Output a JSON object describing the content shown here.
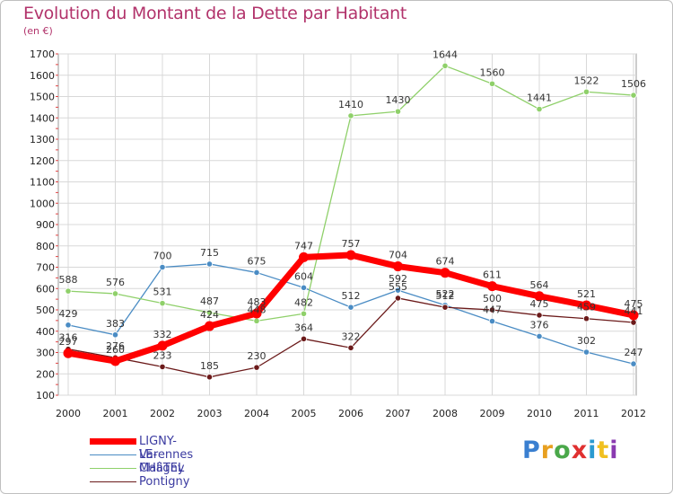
{
  "title": "Evolution du Montant de la Dette par Habitant",
  "subtitle": "(en €)",
  "logo": "Proxiti",
  "chart_data": {
    "type": "line",
    "x": [
      "2000",
      "2001",
      "2002",
      "2003",
      "2004",
      "2005",
      "2006",
      "2007",
      "2008",
      "2009",
      "2010",
      "2011",
      "2012"
    ],
    "ylim": [
      100,
      1700
    ],
    "yticks": [
      100,
      200,
      300,
      400,
      500,
      600,
      700,
      800,
      900,
      1000,
      1100,
      1200,
      1300,
      1400,
      1500,
      1600,
      1700
    ],
    "grid": true,
    "legend_position": "bottom-left",
    "series": [
      {
        "name": "Varennes",
        "color": "#4a8cc4",
        "width": 1.3,
        "values": [
          429,
          383,
          700,
          715,
          675,
          604,
          512,
          592,
          522,
          447,
          376,
          302,
          247
        ]
      },
      {
        "name": "Maligny",
        "color": "#8fd06a",
        "width": 1.3,
        "values": [
          588,
          576,
          531,
          487,
          448,
          482,
          1410,
          1430,
          1644,
          1560,
          1441,
          1522,
          1506
        ]
      },
      {
        "name": "Pontigny",
        "color": "#6b1a1a",
        "width": 1.3,
        "values": [
          316,
          276,
          233,
          185,
          230,
          364,
          322,
          555,
          512,
          500,
          475,
          459,
          441
        ]
      },
      {
        "name": "LIGNY-LE-CHâTEL",
        "color": "#ff0000",
        "width": 7,
        "values": [
          297,
          260,
          332,
          424,
          483,
          747,
          757,
          704,
          674,
          611,
          564,
          521,
          475
        ]
      }
    ]
  }
}
